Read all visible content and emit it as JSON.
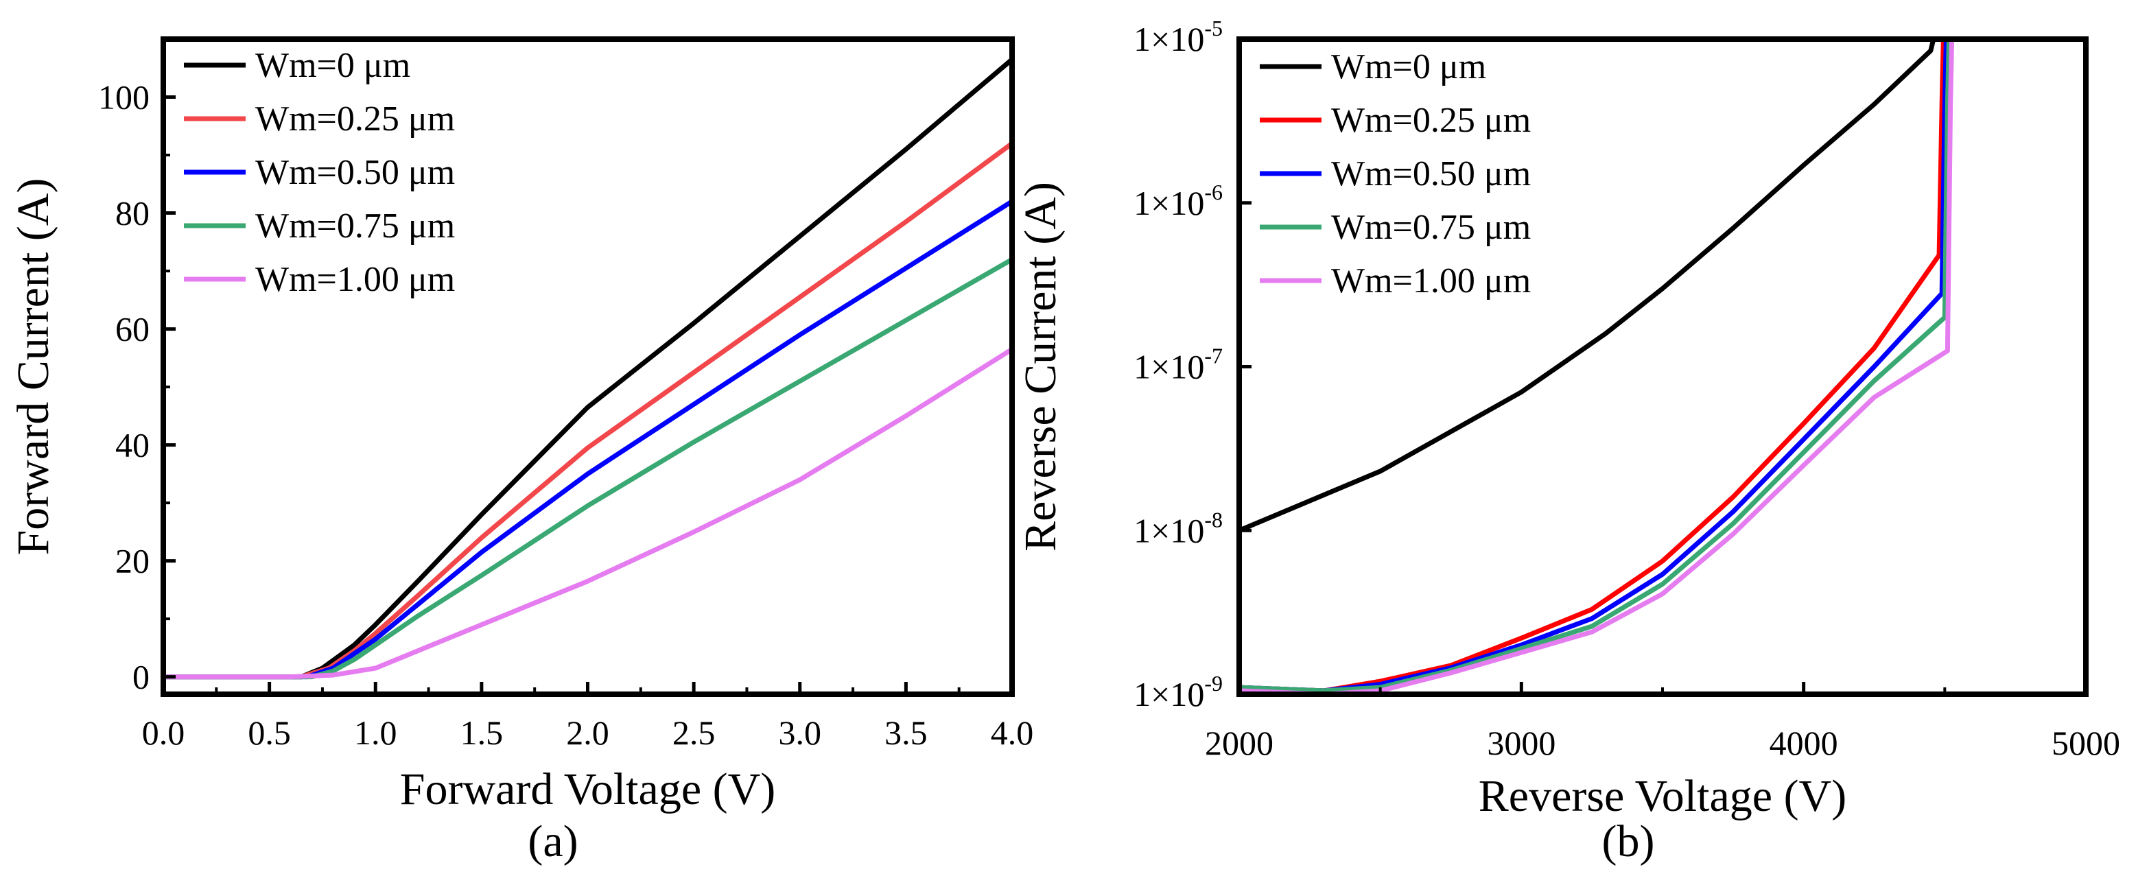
{
  "colors": {
    "black": "#000000",
    "red_a": "#f2474b",
    "red_b": "#ff0000",
    "blue": "#0000ff",
    "green": "#3aa872",
    "violet": "#e57cf0"
  },
  "chart_data": [
    {
      "type": "line",
      "panel_label": "(a)",
      "xlabel": "Forward Voltage (V)",
      "ylabel": "Forward Current (A)",
      "xlim": [
        0.0,
        4.0
      ],
      "ylim": [
        -3,
        110
      ],
      "xscale": "linear",
      "yscale": "linear",
      "xticks": [
        0.0,
        0.5,
        1.0,
        1.5,
        2.0,
        2.5,
        3.0,
        3.5,
        4.0
      ],
      "xtick_labels": [
        "0.0",
        "0.5",
        "1.0",
        "1.5",
        "2.0",
        "2.5",
        "3.0",
        "3.5",
        "4.0"
      ],
      "yticks": [
        0,
        20,
        40,
        60,
        80,
        100
      ],
      "ytick_labels": [
        "0",
        "20",
        "40",
        "60",
        "80",
        "100"
      ],
      "legend_position": "top-left",
      "series": [
        {
          "name": "Wm=0 μm",
          "color": "#000000",
          "x": [
            0,
            0.65,
            0.75,
            0.9,
            1.0,
            1.2,
            1.5,
            2.0,
            2.5,
            3.0,
            3.5,
            4.0
          ],
          "y": [
            0,
            0,
            1.5,
            5.5,
            9,
            16.5,
            28,
            46.5,
            61,
            76,
            91,
            106.5
          ]
        },
        {
          "name": "Wm=0.25 μm",
          "color": "#f2474b",
          "x": [
            0,
            0.65,
            0.78,
            0.9,
            1.0,
            1.2,
            1.5,
            2.0,
            2.5,
            3.0,
            3.5,
            4.0
          ],
          "y": [
            0,
            0,
            1.5,
            4.5,
            7.5,
            14,
            24,
            39.5,
            52.5,
            65.5,
            78.5,
            92
          ]
        },
        {
          "name": "Wm=0.50 μm",
          "color": "#0000ff",
          "x": [
            0,
            0.68,
            0.8,
            0.9,
            1.0,
            1.2,
            1.5,
            2.0,
            2.5,
            3.0,
            3.5,
            4.0
          ],
          "y": [
            0,
            0,
            1.5,
            4,
            6.5,
            12.5,
            21.5,
            35,
            47,
            59,
            70.5,
            82
          ]
        },
        {
          "name": "Wm=0.75 μm",
          "color": "#3aa872",
          "x": [
            0,
            0.7,
            0.8,
            0.9,
            1.0,
            1.2,
            1.5,
            2.0,
            2.5,
            3.0,
            3.5,
            4.0
          ],
          "y": [
            0,
            0,
            1,
            3,
            5.5,
            10.5,
            17.5,
            29.5,
            40.5,
            51,
            61.5,
            72
          ]
        },
        {
          "name": "Wm=1.00 μm",
          "color": "#e57cf0",
          "x": [
            0,
            0.6,
            0.8,
            1.0,
            1.2,
            1.5,
            2.0,
            2.5,
            3.0,
            3.5,
            4.0
          ],
          "y": [
            0,
            0,
            0.3,
            1.5,
            4.5,
            9,
            16.5,
            25,
            34,
            45,
            56.5
          ]
        }
      ]
    },
    {
      "type": "line",
      "panel_label": "(b)",
      "xlabel": "Reverse Voltage (V)",
      "ylabel": "Reverse Current (A)",
      "xlim": [
        2000,
        5000
      ],
      "ylim": [
        1e-09,
        1e-05
      ],
      "xscale": "linear",
      "yscale": "log",
      "xticks": [
        2000,
        3000,
        4000,
        5000
      ],
      "xtick_labels": [
        "2000",
        "3000",
        "4000",
        "5000"
      ],
      "yticks": [
        1e-09,
        1e-08,
        1e-07,
        1e-06,
        1e-05
      ],
      "ytick_labels": [
        {
          "base": "1×10",
          "exp": "-9"
        },
        {
          "base": "1×10",
          "exp": "-8"
        },
        {
          "base": "1×10",
          "exp": "-7"
        },
        {
          "base": "1×10",
          "exp": "-6"
        },
        {
          "base": "1×10",
          "exp": "-5"
        }
      ],
      "legend_position": "top-left",
      "series": [
        {
          "name": "Wm=0 μm",
          "color": "#000000",
          "x": [
            2000,
            2500,
            3000,
            3300,
            3500,
            3750,
            4000,
            4250,
            4450,
            4460,
            4470
          ],
          "y": [
            1e-08,
            2.3e-08,
            7e-08,
            1.6e-07,
            3e-07,
            7e-07,
            1.7e-06,
            4e-06,
            8.5e-06,
            1e-05,
            1e-05
          ]
        },
        {
          "name": "Wm=0.25 μm",
          "color": "#ff0000",
          "x": [
            2000,
            2300,
            2500,
            2750,
            3000,
            3250,
            3500,
            3750,
            4000,
            4250,
            4480,
            4490,
            4495
          ],
          "y": [
            1.1e-09,
            1.05e-09,
            1.2e-09,
            1.5e-09,
            2.2e-09,
            3.3e-09,
            6.5e-09,
            1.6e-08,
            4.5e-08,
            1.3e-07,
            4.8e-07,
            4e-06,
            1e-05
          ]
        },
        {
          "name": "Wm=0.50 μm",
          "color": "#0000ff",
          "x": [
            2000,
            2300,
            2500,
            2750,
            3000,
            3250,
            3500,
            3750,
            4000,
            4250,
            4490,
            4500,
            4505
          ],
          "y": [
            1.1e-09,
            1.05e-09,
            1.15e-09,
            1.45e-09,
            2e-09,
            2.9e-09,
            5.4e-09,
            1.3e-08,
            3.6e-08,
            1e-07,
            2.8e-07,
            4e-06,
            1e-05
          ]
        },
        {
          "name": "Wm=0.75 μm",
          "color": "#3aa872",
          "x": [
            2000,
            2300,
            2500,
            2750,
            3000,
            3250,
            3500,
            3750,
            4000,
            4250,
            4500,
            4510,
            4515
          ],
          "y": [
            1.1e-09,
            1.05e-09,
            1.1e-09,
            1.4e-09,
            1.9e-09,
            2.6e-09,
            4.7e-09,
            1.1e-08,
            3e-08,
            8.2e-08,
            2e-07,
            4e-06,
            1e-05
          ]
        },
        {
          "name": "Wm=1.00 μm",
          "color": "#e57cf0",
          "x": [
            2000,
            2300,
            2500,
            2750,
            3000,
            3250,
            3500,
            3750,
            4000,
            4250,
            4510,
            4520,
            4525
          ],
          "y": [
            1.05e-09,
            1e-09,
            1.05e-09,
            1.35e-09,
            1.8e-09,
            2.4e-09,
            4.1e-09,
            9.5e-09,
            2.5e-08,
            6.5e-08,
            1.25e-07,
            4e-06,
            1e-05
          ]
        }
      ]
    }
  ]
}
